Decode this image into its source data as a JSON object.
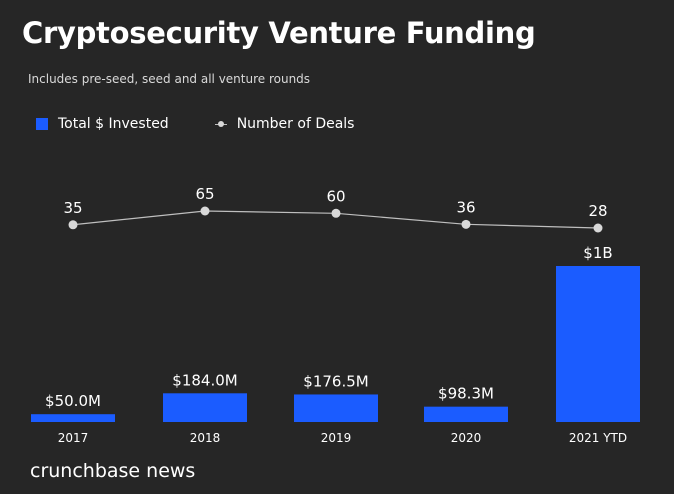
{
  "header": {
    "title": "Cryptosecurity Venture Funding",
    "subtitle": "Includes pre-seed, seed and all venture rounds"
  },
  "legend": {
    "invested_label": "Total $ Invested",
    "deals_label": "Number of Deals"
  },
  "brand": "crunchbase news",
  "colors": {
    "background": "#262626",
    "bar": "#1b5cff",
    "line": "#bfbfbf",
    "marker": "#d9d9d9"
  },
  "chart_data": {
    "type": "bar",
    "categories": [
      "2017",
      "2018",
      "2019",
      "2020",
      "2021 YTD"
    ],
    "series": [
      {
        "name": "Total $ Invested",
        "type": "bar",
        "values": [
          50.0,
          184.0,
          176.5,
          98.3,
          1000
        ],
        "unit": "$M",
        "labels": [
          "$50.0M",
          "$184.0M",
          "$176.5M",
          "$98.3M",
          "$1B"
        ]
      },
      {
        "name": "Number of Deals",
        "type": "line",
        "values": [
          35,
          65,
          60,
          36,
          28
        ]
      }
    ],
    "ylim": [
      0,
      1000
    ],
    "grid": false,
    "legend_position": "top-left"
  }
}
